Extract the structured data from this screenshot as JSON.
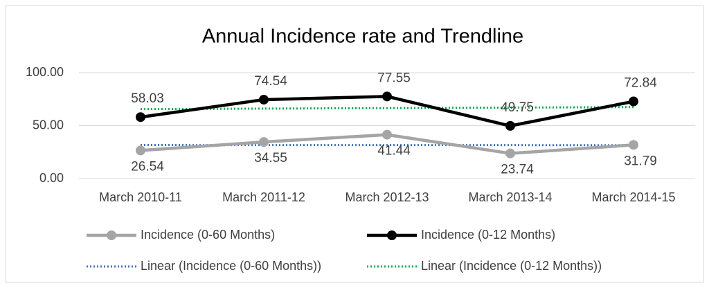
{
  "chart_data": {
    "type": "line",
    "title": "Annual Incidence rate and Trendline",
    "categories": [
      "March 2010-11",
      "March 2011-12",
      "March 2012-13",
      "March 2013-14",
      "March 2014-15"
    ],
    "series": [
      {
        "name": "Incidence (0-60 Months)",
        "color": "#a5a5a5",
        "values": [
          26.54,
          34.55,
          41.44,
          23.74,
          31.79
        ],
        "dotted": false
      },
      {
        "name": "Incidence (0-12 Months)",
        "color": "#000000",
        "values": [
          58.03,
          74.54,
          77.55,
          49.75,
          72.84
        ],
        "dotted": false
      },
      {
        "name": "Linear (Incidence (0-60 Months))",
        "color": "#4472c4",
        "values": [
          31.67,
          31.64,
          31.61,
          31.58,
          31.55
        ],
        "dotted": true
      },
      {
        "name": "Linear (Incidence (0-12 Months))",
        "color": "#00b050",
        "values": [
          65.58,
          66.06,
          66.54,
          67.03,
          67.51
        ],
        "dotted": true
      }
    ],
    "ylim": [
      0,
      100
    ],
    "yticks": [
      {
        "value": 0,
        "label": "0.00"
      },
      {
        "value": 50,
        "label": "50.00"
      },
      {
        "value": 100,
        "label": "100.00"
      }
    ],
    "grid": true
  }
}
